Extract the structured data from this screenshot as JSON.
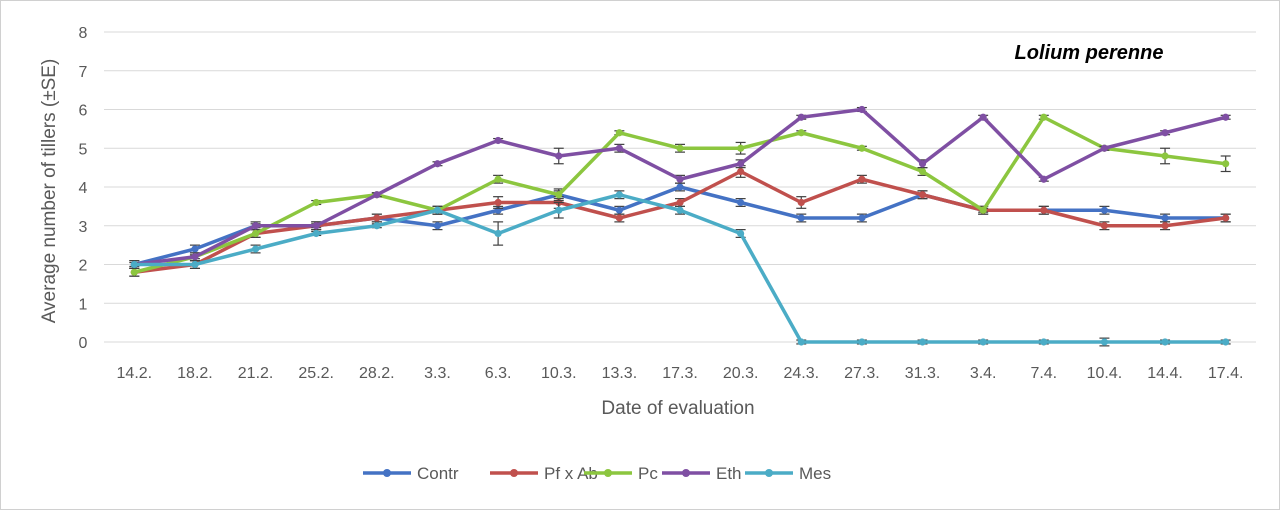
{
  "chart_data": {
    "type": "line",
    "title": "",
    "annotation": "Lolium perenne",
    "xlabel": "Date of evaluation",
    "ylabel": "Average number of tillers (±SE)",
    "ylim": [
      0,
      8
    ],
    "y_ticks": [
      0,
      1,
      2,
      3,
      4,
      5,
      6,
      7,
      8
    ],
    "grid": "horizontal",
    "legend_position": "bottom",
    "categories": [
      "14.2.",
      "18.2.",
      "21.2.",
      "25.2.",
      "28.2.",
      "3.3.",
      "6.3.",
      "10.3.",
      "13.3.",
      "17.3.",
      "20.3.",
      "24.3.",
      "27.3.",
      "31.3.",
      "3.4.",
      "7.4.",
      "10.4.",
      "14.4.",
      "17.4."
    ],
    "series": [
      {
        "name": "Contr",
        "color": "#4472c4",
        "values": [
          2.0,
          2.4,
          3.0,
          3.0,
          3.2,
          3.0,
          3.4,
          3.8,
          3.4,
          4.0,
          3.6,
          3.2,
          3.2,
          3.8,
          3.4,
          3.4,
          3.4,
          3.2,
          3.2
        ],
        "error": [
          0.1,
          0.1,
          0.1,
          0.1,
          0.1,
          0.1,
          0.1,
          0.1,
          0.1,
          0.1,
          0.1,
          0.1,
          0.1,
          0.1,
          0.1,
          0.1,
          0.1,
          0.1,
          0.1
        ]
      },
      {
        "name": "Pf x Ab",
        "color": "#c0504d",
        "values": [
          1.8,
          2.0,
          2.8,
          3.0,
          3.2,
          3.4,
          3.6,
          3.6,
          3.2,
          3.6,
          4.4,
          3.6,
          4.2,
          3.8,
          3.4,
          3.4,
          3.0,
          3.0,
          3.2
        ],
        "error": [
          0.1,
          0.1,
          0.1,
          0.1,
          0.1,
          0.1,
          0.15,
          0.15,
          0.1,
          0.1,
          0.15,
          0.15,
          0.1,
          0.1,
          0.1,
          0.1,
          0.1,
          0.1,
          0.1
        ]
      },
      {
        "name": "Pc",
        "color": "#8cc63f",
        "values": [
          1.8,
          2.2,
          2.8,
          3.6,
          3.8,
          3.4,
          4.2,
          3.8,
          5.4,
          5.0,
          5.0,
          5.4,
          5.0,
          4.4,
          3.4,
          5.8,
          5.0,
          4.8,
          4.6
        ],
        "error": [
          0.1,
          0.1,
          0.1,
          0.05,
          0.05,
          0.1,
          0.1,
          0.15,
          0.05,
          0.1,
          0.15,
          0.05,
          0.05,
          0.1,
          0.05,
          0.05,
          0.05,
          0.2,
          0.2
        ]
      },
      {
        "name": "Eth",
        "color": "#7f4fa3",
        "values": [
          2.0,
          2.2,
          3.0,
          3.0,
          3.8,
          4.6,
          5.2,
          4.8,
          5.0,
          4.2,
          4.6,
          5.8,
          6.0,
          4.6,
          5.8,
          4.2,
          5.0,
          5.4,
          5.8
        ],
        "error": [
          0.05,
          0.05,
          0.05,
          0.05,
          0.05,
          0.05,
          0.05,
          0.2,
          0.1,
          0.1,
          0.1,
          0.05,
          0.05,
          0.1,
          0.05,
          0.05,
          0.05,
          0.05,
          0.05
        ]
      },
      {
        "name": "Mes",
        "color": "#4bacc6",
        "values": [
          2.0,
          2.0,
          2.4,
          2.8,
          3.0,
          3.4,
          2.8,
          3.4,
          3.8,
          3.4,
          2.8,
          0.0,
          0.0,
          0.0,
          0.0,
          0.0,
          0.0,
          0.0,
          0.0
        ],
        "error": [
          0.1,
          0.1,
          0.1,
          0.05,
          0.05,
          0.1,
          0.3,
          0.2,
          0.1,
          0.1,
          0.1,
          0.05,
          0.05,
          0.05,
          0.05,
          0.05,
          0.1,
          0.05,
          0.05
        ]
      }
    ]
  }
}
